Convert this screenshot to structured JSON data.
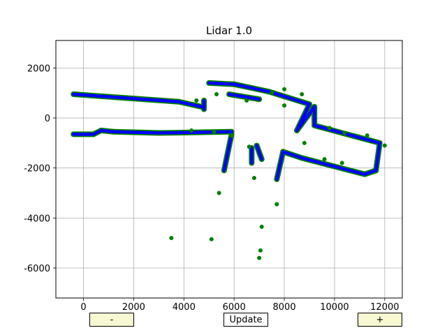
{
  "window": {
    "title": "Lidar 1.0"
  },
  "buttons": {
    "minus_label": "-",
    "update_label": "Update",
    "plus_label": "+"
  },
  "colors": {
    "outer_points": "#008000",
    "inner_points": "#0000ff",
    "grid": "#b0b0b0"
  },
  "chart_data": {
    "type": "scatter",
    "title": "Lidar 1.0",
    "xlabel": "",
    "ylabel": "",
    "xlim": [
      -1100,
      12700
    ],
    "ylim": [
      -7200,
      3100
    ],
    "xticks": [
      0,
      2000,
      4000,
      6000,
      8000,
      10000,
      12000
    ],
    "yticks": [
      2000,
      0,
      -2000,
      -4000,
      -6000
    ],
    "grid": true,
    "segments": [
      [
        [
          -400,
          950
        ],
        [
          3800,
          650
        ]
      ],
      [
        [
          3800,
          650
        ],
        [
          4700,
          450
        ]
      ],
      [
        [
          4800,
          350
        ],
        [
          4800,
          700
        ]
      ],
      [
        [
          5000,
          1400
        ],
        [
          6000,
          1350
        ]
      ],
      [
        [
          6000,
          1350
        ],
        [
          7400,
          1050
        ]
      ],
      [
        [
          7400,
          1050
        ],
        [
          9000,
          550
        ]
      ],
      [
        [
          9000,
          550
        ],
        [
          8500,
          -500
        ]
      ],
      [
        [
          8500,
          -500
        ],
        [
          9200,
          450
        ]
      ],
      [
        [
          9200,
          450
        ],
        [
          9200,
          -300
        ]
      ],
      [
        [
          9200,
          -300
        ],
        [
          11800,
          -1000
        ]
      ],
      [
        [
          11800,
          -1000
        ],
        [
          11650,
          -2100
        ]
      ],
      [
        [
          11650,
          -2100
        ],
        [
          11200,
          -2250
        ]
      ],
      [
        [
          11200,
          -2250
        ],
        [
          8700,
          -1600
        ]
      ],
      [
        [
          8700,
          -1600
        ],
        [
          7950,
          -1350
        ]
      ],
      [
        [
          7950,
          -1350
        ],
        [
          7700,
          -2450
        ]
      ],
      [
        [
          -400,
          -650
        ],
        [
          400,
          -650
        ]
      ],
      [
        [
          400,
          -650
        ],
        [
          700,
          -500
        ]
      ],
      [
        [
          700,
          -500
        ],
        [
          1200,
          -550
        ]
      ],
      [
        [
          1200,
          -550
        ],
        [
          3000,
          -600
        ]
      ],
      [
        [
          3000,
          -600
        ],
        [
          5900,
          -550
        ]
      ],
      [
        [
          5900,
          -650
        ],
        [
          5600,
          -2100
        ]
      ],
      [
        [
          6700,
          -1200
        ],
        [
          6700,
          -1800
        ]
      ],
      [
        [
          6900,
          -1100
        ],
        [
          7100,
          -1650
        ]
      ],
      [
        [
          5800,
          950
        ],
        [
          7000,
          750
        ]
      ]
    ],
    "blobs": [
      [
        4500,
        700
      ],
      [
        5300,
        950
      ],
      [
        6500,
        700
      ],
      [
        7500,
        1000
      ],
      [
        8000,
        1150
      ],
      [
        8700,
        950
      ],
      [
        8000,
        500
      ],
      [
        9800,
        -400
      ],
      [
        10400,
        -600
      ],
      [
        11300,
        -700
      ],
      [
        12000,
        -1100
      ],
      [
        4300,
        -500
      ],
      [
        5200,
        -550
      ],
      [
        5900,
        -700
      ],
      [
        6600,
        -1150
      ],
      [
        8800,
        -1000
      ],
      [
        9600,
        -1650
      ],
      [
        10300,
        -1800
      ],
      [
        6800,
        -2400
      ],
      [
        5400,
        -3000
      ],
      [
        7700,
        -3450
      ],
      [
        7100,
        -4350
      ],
      [
        3500,
        -4800
      ],
      [
        5100,
        -4850
      ],
      [
        7050,
        -5300
      ],
      [
        7000,
        -5600
      ]
    ]
  }
}
